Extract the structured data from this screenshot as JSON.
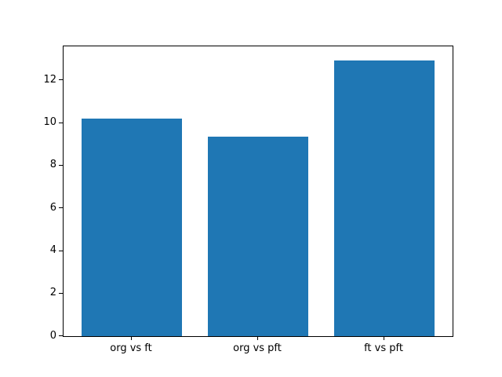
{
  "chart_data": {
    "type": "bar",
    "title": "",
    "xlabel": "",
    "ylabel": "",
    "categories": [
      "org vs ft",
      "org vs pft",
      "ft vs pft"
    ],
    "values": [
      10.2,
      9.35,
      12.95
    ],
    "yticks": [
      0,
      2,
      4,
      6,
      8,
      10,
      12
    ],
    "ylim": [
      0,
      13.6
    ],
    "xlim": [
      -0.54,
      2.54
    ],
    "bar_width": 0.8,
    "bar_color": "#1f77b4",
    "axis_color": "#000000",
    "background_color": "#ffffff",
    "grid": false,
    "legend": null
  }
}
